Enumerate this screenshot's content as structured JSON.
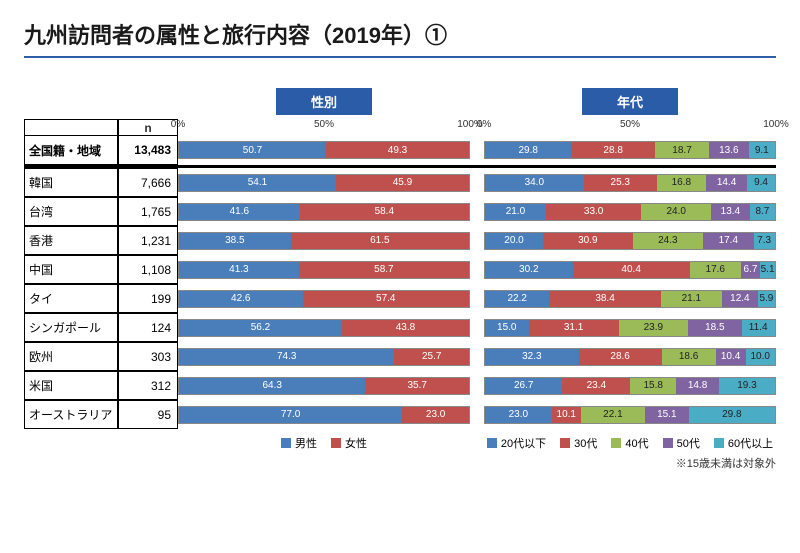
{
  "title": "九州訪問者の属性と旅行内容（2019年）①",
  "underline_color": "#2b5ca8",
  "n_header": "n",
  "charts": {
    "gender": {
      "header": "性別",
      "axis_ticks": [
        "0%",
        "50%",
        "100%"
      ],
      "legend": [
        {
          "label": "男性",
          "color": "#4a7ebb"
        },
        {
          "label": "女性",
          "color": "#c0504d"
        }
      ]
    },
    "age": {
      "header": "年代",
      "axis_ticks": [
        "0%",
        "50%",
        "100%"
      ],
      "legend": [
        {
          "label": "20代以下",
          "color": "#4a7ebb"
        },
        {
          "label": "30代",
          "color": "#c0504d"
        },
        {
          "label": "40代",
          "color": "#9bbb59"
        },
        {
          "label": "50代",
          "color": "#8064a2"
        },
        {
          "label": "60代以上",
          "color": "#4bacc6"
        }
      ]
    }
  },
  "rows": [
    {
      "label": "全国籍・地域",
      "n": "13,483",
      "total": true,
      "gender": [
        50.7,
        49.3
      ],
      "age": [
        29.8,
        28.8,
        18.7,
        13.6,
        9.1
      ]
    },
    {
      "label": "韓国",
      "n": "7,666",
      "gender": [
        54.1,
        45.9
      ],
      "age": [
        34.0,
        25.3,
        16.8,
        14.4,
        9.4
      ]
    },
    {
      "label": "台湾",
      "n": "1,765",
      "gender": [
        41.6,
        58.4
      ],
      "age": [
        21.0,
        33.0,
        24.0,
        13.4,
        8.7
      ]
    },
    {
      "label": "香港",
      "n": "1,231",
      "gender": [
        38.5,
        61.5
      ],
      "age": [
        20.0,
        30.9,
        24.3,
        17.4,
        7.3
      ]
    },
    {
      "label": "中国",
      "n": "1,108",
      "gender": [
        41.3,
        58.7
      ],
      "age": [
        30.2,
        40.4,
        17.6,
        6.7,
        5.1
      ]
    },
    {
      "label": "タイ",
      "n": "199",
      "gender": [
        42.6,
        57.4
      ],
      "age": [
        22.2,
        38.4,
        21.1,
        12.4,
        5.9
      ]
    },
    {
      "label": "シンガポール",
      "n": "124",
      "gender": [
        56.2,
        43.8
      ],
      "age": [
        15.0,
        31.1,
        23.9,
        18.5,
        11.4
      ]
    },
    {
      "label": "欧州",
      "n": "303",
      "gender": [
        74.3,
        25.7
      ],
      "age": [
        32.3,
        28.6,
        18.6,
        10.4,
        10.0
      ]
    },
    {
      "label": "米国",
      "n": "312",
      "gender": [
        64.3,
        35.7
      ],
      "age": [
        26.7,
        23.4,
        15.8,
        14.8,
        19.3
      ]
    },
    {
      "label": "オーストラリア",
      "n": "95",
      "gender": [
        77.0,
        23.0
      ],
      "age": [
        23.0,
        10.1,
        22.1,
        15.1,
        29.8
      ]
    }
  ],
  "footnote": "※15歳未満は対象外",
  "text_class": {
    "gender": [
      "dark",
      "dark"
    ],
    "age": [
      "dark",
      "dark",
      "light",
      "dark",
      "light"
    ]
  }
}
